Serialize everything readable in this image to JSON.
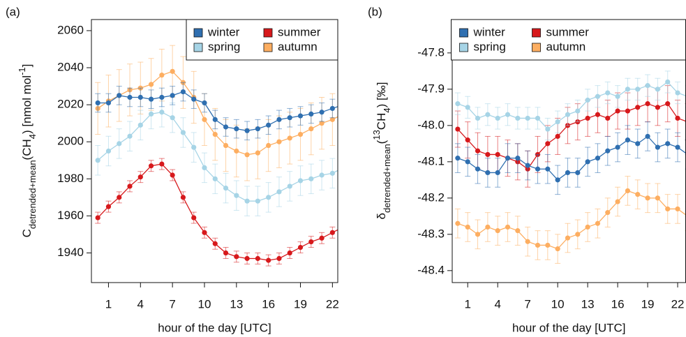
{
  "chart_data": [
    {
      "type": "line",
      "panel_label": "(a)",
      "ylabel": [
        {
          "text": "C"
        },
        {
          "text": "detrended+mean",
          "sub": true
        },
        {
          "text": "(CH"
        },
        {
          "text": "4",
          "sub": true
        },
        {
          "text": ") [nmol mol"
        },
        {
          "text": "-1",
          "sup": true
        },
        {
          "text": "]"
        }
      ],
      "xlabel": "hour of the day [UTC]",
      "x": [
        0,
        1,
        2,
        3,
        4,
        5,
        6,
        7,
        8,
        9,
        10,
        11,
        12,
        13,
        14,
        15,
        16,
        17,
        18,
        19,
        20,
        21,
        22,
        23
      ],
      "xlim": [
        -0.6,
        22.5
      ],
      "xticks": [
        1,
        4,
        7,
        10,
        13,
        16,
        19,
        22
      ],
      "ylim": [
        1924,
        2066
      ],
      "yticks": [
        1940,
        1960,
        1980,
        2000,
        2020,
        2040,
        2060
      ],
      "legend": "top right",
      "series": [
        {
          "name": "winter",
          "color": "#2f6fb0",
          "values": [
            2021,
            2021,
            2025,
            2024,
            2024,
            2023,
            2024,
            2025,
            2027,
            2023,
            2021,
            2012,
            2008,
            2007,
            2006,
            2007,
            2009,
            2012,
            2013,
            2014,
            2015,
            2016,
            2018,
            2020
          ],
          "errors": [
            5,
            5,
            5,
            5,
            5,
            5,
            5,
            5,
            5,
            5,
            5,
            5,
            5,
            5,
            5,
            5,
            5,
            5,
            5,
            5,
            5,
            5,
            5,
            5
          ]
        },
        {
          "name": "spring",
          "color": "#a6d4e6",
          "values": [
            1990,
            1995,
            1999,
            2003,
            2009,
            2015,
            2016,
            2013,
            2005,
            1997,
            1986,
            1980,
            1975,
            1971,
            1968,
            1968,
            1970,
            1973,
            1976,
            1979,
            1980,
            1982,
            1983,
            1986
          ],
          "errors": [
            8,
            8,
            8,
            8,
            8,
            8,
            8,
            8,
            8,
            8,
            8,
            8,
            8,
            8,
            8,
            8,
            8,
            8,
            8,
            8,
            8,
            8,
            8,
            8
          ]
        },
        {
          "name": "summer",
          "color": "#d7191c",
          "values": [
            1959,
            1965,
            1970,
            1976,
            1981,
            1987,
            1988,
            1982,
            1970,
            1959,
            1951,
            1945,
            1940,
            1938,
            1937,
            1937,
            1936,
            1937,
            1940,
            1943,
            1946,
            1948,
            1951,
            1954
          ],
          "errors": [
            3,
            3,
            3,
            3,
            3,
            3,
            3,
            3,
            3,
            3,
            3,
            3,
            3,
            3,
            3,
            3,
            3,
            3,
            3,
            3,
            3,
            3,
            3,
            3
          ]
        },
        {
          "name": "autumn",
          "color": "#fdae61",
          "values": [
            2018,
            2022,
            2025,
            2028,
            2029,
            2031,
            2036,
            2038,
            2032,
            2024,
            2012,
            2004,
            1998,
            1995,
            1993,
            1994,
            1998,
            2000,
            2002,
            2004,
            2007,
            2010,
            2012,
            2015
          ],
          "errors": [
            14,
            14,
            14,
            14,
            14,
            14,
            14,
            14,
            14,
            14,
            14,
            14,
            14,
            14,
            14,
            14,
            14,
            14,
            14,
            14,
            14,
            14,
            14,
            14
          ]
        }
      ]
    },
    {
      "type": "line",
      "panel_label": "(b)",
      "ylabel": [
        {
          "text": "δ"
        },
        {
          "text": "detrended+mean",
          "sub": true
        },
        {
          "text": "("
        },
        {
          "text": "13",
          "sup": true
        },
        {
          "text": "CH"
        },
        {
          "text": "4",
          "sub": true
        },
        {
          "text": ") [‰]"
        }
      ],
      "xlabel": "hour of the day [UTC]",
      "x": [
        0,
        1,
        2,
        3,
        4,
        5,
        6,
        7,
        8,
        9,
        10,
        11,
        12,
        13,
        14,
        15,
        16,
        17,
        18,
        19,
        20,
        21,
        22,
        23
      ],
      "xlim": [
        -0.55,
        22.8
      ],
      "xticks": [
        1,
        4,
        7,
        10,
        13,
        16,
        19,
        22
      ],
      "ylim": [
        -48.433,
        -47.708
      ],
      "yticks": [
        -48.4,
        -48.3,
        -48.2,
        -48.1,
        {
          "value": -48,
          "label": "-48.0"
        },
        -47.9,
        -47.8
      ],
      "legend": "top right",
      "series": [
        {
          "name": "winter",
          "color": "#2f6fb0",
          "values": [
            -48.09,
            -48.1,
            -48.12,
            -48.13,
            -48.13,
            -48.09,
            -48.09,
            -48.11,
            -48.12,
            -48.12,
            -48.15,
            -48.13,
            -48.13,
            -48.1,
            -48.09,
            -48.07,
            -48.06,
            -48.04,
            -48.05,
            -48.03,
            -48.06,
            -48.05,
            -48.06,
            -48.08
          ],
          "errors": [
            0.04,
            0.04,
            0.04,
            0.04,
            0.04,
            0.04,
            0.04,
            0.04,
            0.04,
            0.04,
            0.04,
            0.04,
            0.04,
            0.04,
            0.04,
            0.04,
            0.04,
            0.04,
            0.04,
            0.04,
            0.04,
            0.04,
            0.04,
            0.04
          ]
        },
        {
          "name": "spring",
          "color": "#a6d4e6",
          "values": [
            -47.94,
            -47.95,
            -47.98,
            -47.97,
            -47.98,
            -47.97,
            -47.98,
            -47.98,
            -47.98,
            -48.01,
            -47.99,
            -47.97,
            -47.96,
            -47.93,
            -47.92,
            -47.91,
            -47.92,
            -47.9,
            -47.9,
            -47.89,
            -47.9,
            -47.88,
            -47.91,
            -47.92
          ],
          "errors": [
            0.03,
            0.03,
            0.03,
            0.03,
            0.03,
            0.03,
            0.03,
            0.03,
            0.03,
            0.03,
            0.03,
            0.03,
            0.03,
            0.03,
            0.03,
            0.03,
            0.03,
            0.03,
            0.03,
            0.03,
            0.03,
            0.03,
            0.03,
            0.03
          ]
        },
        {
          "name": "summer",
          "color": "#d7191c",
          "values": [
            -48.01,
            -48.04,
            -48.07,
            -48.08,
            -48.08,
            -48.09,
            -48.1,
            -48.12,
            -48.08,
            -48.05,
            -48.03,
            -48.0,
            -47.99,
            -47.98,
            -47.97,
            -47.98,
            -47.96,
            -47.96,
            -47.95,
            -47.94,
            -47.95,
            -47.94,
            -47.98,
            -47.99
          ],
          "errors": [
            0.05,
            0.05,
            0.05,
            0.05,
            0.05,
            0.05,
            0.05,
            0.05,
            0.05,
            0.05,
            0.05,
            0.05,
            0.05,
            0.05,
            0.05,
            0.05,
            0.05,
            0.05,
            0.05,
            0.05,
            0.05,
            0.05,
            0.05,
            0.05
          ]
        },
        {
          "name": "autumn",
          "color": "#fdae61",
          "values": [
            -48.27,
            -48.28,
            -48.3,
            -48.28,
            -48.29,
            -48.28,
            -48.29,
            -48.32,
            -48.33,
            -48.33,
            -48.34,
            -48.31,
            -48.3,
            -48.28,
            -48.27,
            -48.24,
            -48.21,
            -48.18,
            -48.19,
            -48.2,
            -48.2,
            -48.23,
            -48.23,
            -48.25
          ],
          "errors": [
            0.04,
            0.04,
            0.04,
            0.04,
            0.04,
            0.04,
            0.04,
            0.04,
            0.04,
            0.04,
            0.04,
            0.04,
            0.04,
            0.04,
            0.04,
            0.04,
            0.04,
            0.04,
            0.04,
            0.04,
            0.04,
            0.04,
            0.04,
            0.04
          ]
        }
      ]
    }
  ]
}
